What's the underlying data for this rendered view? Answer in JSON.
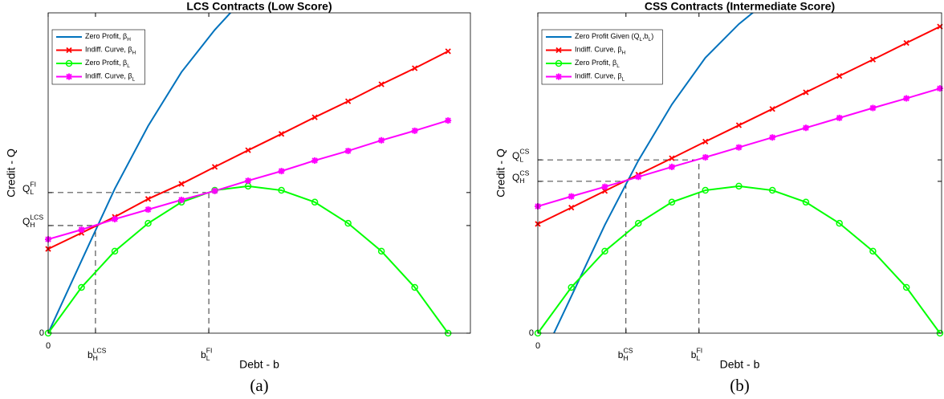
{
  "chart_data": [
    {
      "type": "line",
      "title": "LCS Contracts (Low Score)",
      "xlabel": "Debt - b",
      "ylabel": "Credit - Q",
      "caption": "(a)",
      "x": [
        0,
        1,
        2,
        3,
        4,
        5,
        6,
        7,
        8,
        9,
        10,
        11,
        12
      ],
      "xlim": [
        0,
        12.67
      ],
      "ylim": [
        0,
        10
      ],
      "xticks": [
        0,
        {
          "value": 1.42,
          "label": [
            {
              "text": "b"
            },
            {
              "sub": "H"
            },
            {
              "sup": "LCS"
            }
          ]
        },
        {
          "value": 4.82,
          "label": [
            {
              "text": "b"
            },
            {
              "sub": "L"
            },
            {
              "sup": "FI"
            }
          ]
        }
      ],
      "yticks": [
        0,
        {
          "value": 3.36,
          "label": [
            {
              "text": "Q"
            },
            {
              "sub": "H"
            },
            {
              "sup": "LCS"
            }
          ]
        },
        {
          "value": 4.39,
          "label": [
            {
              "text": "Q"
            },
            {
              "sub": "L"
            },
            {
              "sup": "FI"
            }
          ]
        }
      ],
      "guide_lines": true,
      "grid": false,
      "legend": "upper left",
      "series": [
        {
          "name": [
            {
              "text": "Zero Profit, β"
            },
            {
              "sub": "H"
            }
          ],
          "color": "#0072bd",
          "marker": "none",
          "x": [
            0,
            1,
            2,
            3,
            4,
            5,
            6
          ],
          "values": [
            0,
            2.26,
            4.51,
            6.47,
            8.15,
            9.47,
            10.6
          ]
        },
        {
          "name": [
            {
              "text": "Indiff. Curve, β"
            },
            {
              "sub": "H"
            }
          ],
          "color": "#ff0000",
          "marker": "x",
          "values": [
            2.63,
            3.13,
            3.63,
            4.19,
            4.66,
            5.19,
            5.71,
            6.22,
            6.74,
            7.24,
            7.77,
            8.27,
            8.8
          ]
        },
        {
          "name": [
            {
              "text": "Zero Profit, β"
            },
            {
              "sub": "L"
            }
          ],
          "color": "#00ff00",
          "marker": "o",
          "values": [
            0,
            1.43,
            2.56,
            3.43,
            4.09,
            4.46,
            4.59,
            4.46,
            4.09,
            3.43,
            2.56,
            1.43,
            0
          ]
        },
        {
          "name": [
            {
              "text": "Indiff. Curve, β"
            },
            {
              "sub": "L"
            }
          ],
          "color": "#ff00ff",
          "marker": "*",
          "values": [
            2.93,
            3.23,
            3.56,
            3.86,
            4.16,
            4.44,
            4.76,
            5.06,
            5.39,
            5.69,
            6.02,
            6.32,
            6.64
          ]
        }
      ]
    },
    {
      "type": "line",
      "title": "CSS Contracts (Intermediate Score)",
      "xlabel": "Debt - b",
      "ylabel": "Credit - Q",
      "caption": "(b)",
      "x": [
        0,
        1,
        2,
        3,
        4,
        5,
        6,
        7,
        8,
        9,
        10,
        11,
        12
      ],
      "xlim": [
        0,
        12.05
      ],
      "ylim": [
        0,
        10
      ],
      "xticks": [
        0,
        {
          "value": 2.63,
          "label": [
            {
              "text": "b"
            },
            {
              "sub": "H"
            },
            {
              "sup": "CS"
            }
          ]
        },
        {
          "value": 4.81,
          "label": [
            {
              "text": "b"
            },
            {
              "sub": "L"
            },
            {
              "sup": "FI"
            }
          ]
        }
      ],
      "yticks": [
        0,
        {
          "value": 4.74,
          "label": [
            {
              "text": "Q"
            },
            {
              "sub": "H"
            },
            {
              "sup": "CS"
            }
          ]
        },
        {
          "value": 5.41,
          "label": [
            {
              "text": "Q"
            },
            {
              "sub": "L"
            },
            {
              "sup": "CS"
            }
          ]
        }
      ],
      "guide_lines": true,
      "grid": false,
      "legend": "upper left",
      "series": [
        {
          "name": [
            {
              "text": "Zero Profit Given (Q"
            },
            {
              "sub": "L"
            },
            {
              "text": ",b"
            },
            {
              "sub": "L"
            },
            {
              "text": ")"
            }
          ],
          "color": "#0072bd",
          "marker": "none",
          "x": [
            0.48,
            1,
            2,
            3,
            4,
            5,
            6,
            7
          ],
          "values": [
            0,
            1.15,
            3.38,
            5.39,
            7.14,
            8.6,
            9.65,
            10.5
          ]
        },
        {
          "name": [
            {
              "text": "Indiff. Curve, β"
            },
            {
              "sub": "H"
            }
          ],
          "color": "#ff0000",
          "marker": "x",
          "values": [
            3.41,
            3.92,
            4.44,
            4.95,
            5.46,
            5.98,
            6.49,
            7.0,
            7.52,
            8.03,
            8.54,
            9.06,
            9.57
          ]
        },
        {
          "name": [
            {
              "text": "Zero Profit, β"
            },
            {
              "sub": "L"
            }
          ],
          "color": "#00ff00",
          "marker": "o",
          "values": [
            0,
            1.43,
            2.56,
            3.43,
            4.09,
            4.46,
            4.59,
            4.46,
            4.09,
            3.43,
            2.56,
            1.43,
            0
          ]
        },
        {
          "name": [
            {
              "text": "Indiff. Curve, β"
            },
            {
              "sub": "L"
            }
          ],
          "color": "#ff00ff",
          "marker": "*",
          "values": [
            3.96,
            4.27,
            4.57,
            4.88,
            5.19,
            5.49,
            5.8,
            6.11,
            6.41,
            6.72,
            7.03,
            7.33,
            7.64
          ]
        }
      ]
    }
  ]
}
